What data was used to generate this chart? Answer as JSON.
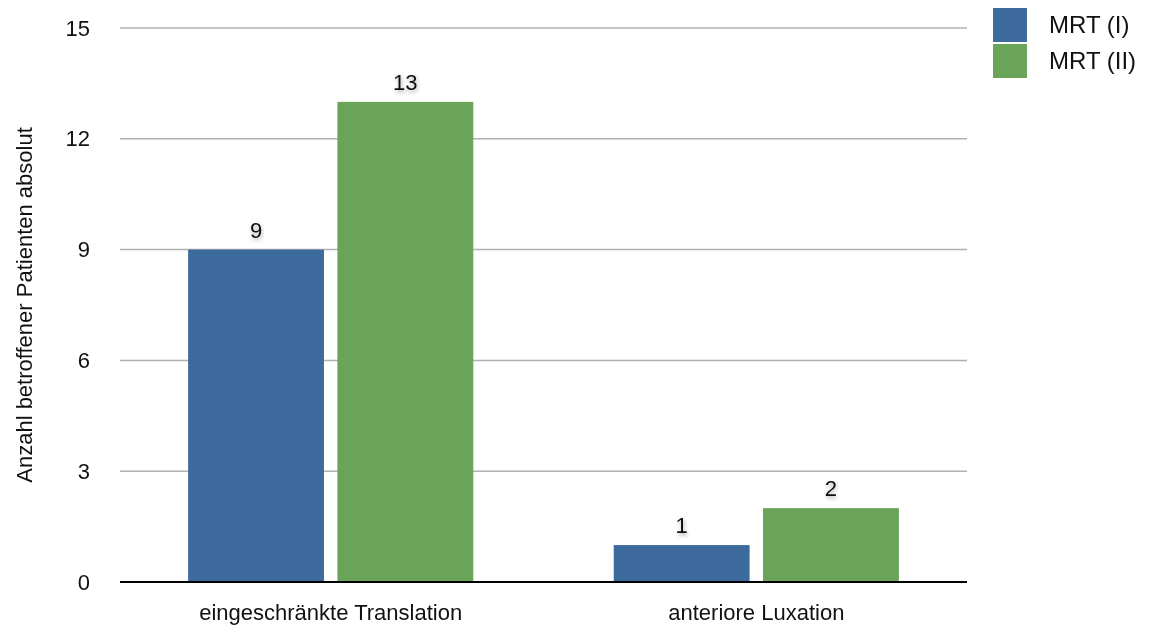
{
  "chart_data": {
    "type": "bar",
    "ylabel": "Anzahl betroffener Patienten absolut",
    "categories": [
      "eingeschränkte Translation",
      "anteriore Luxation"
    ],
    "series": [
      {
        "name": "MRT (I)",
        "color": "#3d6b9e",
        "values": [
          9,
          1
        ]
      },
      {
        "name": "MRT (II)",
        "color": "#6aa459",
        "values": [
          13,
          2
        ]
      }
    ],
    "ylim": [
      0,
      15
    ],
    "yticks": [
      0,
      3,
      6,
      9,
      12,
      15
    ],
    "grid": "y",
    "legend": "top right",
    "data_labels": true
  }
}
